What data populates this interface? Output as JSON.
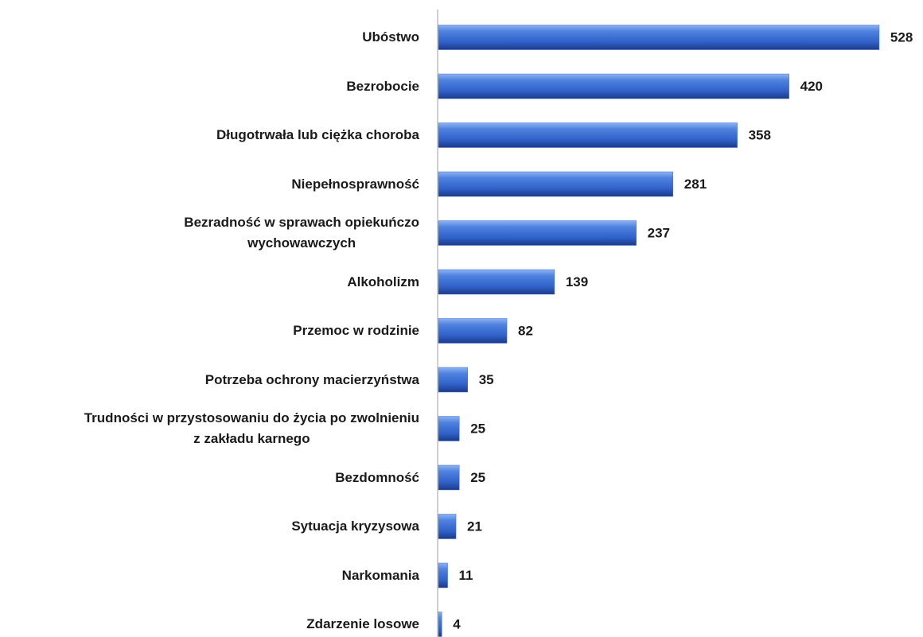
{
  "chart_data": {
    "type": "barh",
    "categories": [
      "Ubóstwo",
      "Bezrobocie",
      "Długotrwała lub ciężka choroba",
      "Niepełnosprawność",
      "Bezradność w sprawach opiekuńczo\nwychowawczych",
      "Alkoholizm",
      "Przemoc w rodzinie",
      "Potrzeba ochrony macierzyństwa",
      "Trudności w przystosowaniu do życia po zwolnieniu\nz zakładu karnego",
      "Bezdomność",
      "Sytuacja kryzysowa",
      "Narkomania",
      "Zdarzenie losowe"
    ],
    "values": [
      528,
      420,
      358,
      281,
      237,
      139,
      82,
      35,
      25,
      25,
      21,
      11,
      4
    ],
    "color": "#3a6fd8",
    "xlim": [
      0,
      550
    ]
  }
}
